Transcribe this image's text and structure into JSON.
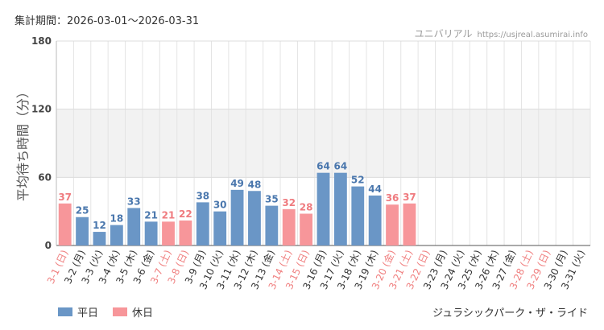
{
  "header": {
    "period_label": "集計期間",
    "period_range": "2026-03-01～2026-03-31",
    "source_name": "ユニバリアル",
    "source_url": "https://usjreal.asumirai.info"
  },
  "legend": {
    "weekday_label": "平日",
    "holiday_label": "休日"
  },
  "attraction": "ジュラシックパーク・ザ・ライド",
  "colors": {
    "weekday": "#6a96c6",
    "holiday": "#f7969a",
    "weekday_text": "#4a77ad",
    "holiday_text": "#ef7b7f",
    "band": "#f2f2f2",
    "grid": "#e4e4e4"
  },
  "chart_data": {
    "type": "bar",
    "ylabel": "平均待ち時間（分）",
    "ylim": [
      0,
      180
    ],
    "yticks": [
      0,
      60,
      120,
      180
    ],
    "categories": [
      "3-1 (日)",
      "3-2 (月)",
      "3-3 (火)",
      "3-4 (水)",
      "3-5 (木)",
      "3-6 (金)",
      "3-7 (土)",
      "3-8 (日)",
      "3-9 (月)",
      "3-10 (火)",
      "3-11 (水)",
      "3-12 (木)",
      "3-13 (金)",
      "3-14 (土)",
      "3-15 (日)",
      "3-16 (月)",
      "3-17 (火)",
      "3-18 (水)",
      "3-19 (木)",
      "3-20 (金)",
      "3-21 (土)",
      "3-22 (日)",
      "3-23 (月)",
      "3-24 (火)",
      "3-25 (水)",
      "3-26 (木)",
      "3-27 (金)",
      "3-28 (土)",
      "3-29 (日)",
      "3-30 (月)",
      "3-31 (火)"
    ],
    "values": [
      37,
      25,
      12,
      18,
      33,
      21,
      21,
      22,
      38,
      30,
      49,
      48,
      35,
      32,
      28,
      64,
      64,
      52,
      44,
      36,
      37,
      null,
      null,
      null,
      null,
      null,
      null,
      null,
      null,
      null,
      null
    ],
    "holiday": [
      true,
      false,
      false,
      false,
      false,
      false,
      true,
      true,
      false,
      false,
      false,
      false,
      false,
      true,
      true,
      false,
      false,
      false,
      false,
      true,
      true,
      true,
      false,
      false,
      false,
      false,
      false,
      true,
      true,
      false,
      false
    ],
    "series": [
      {
        "name": "平日"
      },
      {
        "name": "休日"
      }
    ]
  }
}
